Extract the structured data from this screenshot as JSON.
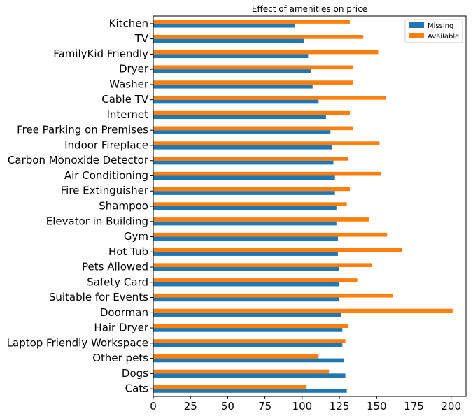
{
  "chart_data": {
    "type": "bar",
    "orientation": "horizontal",
    "title": "Effect of amenities on price",
    "xlabel": "",
    "ylabel": "",
    "xlim": [
      0,
      210
    ],
    "xticks": [
      0,
      25,
      50,
      75,
      100,
      125,
      150,
      175,
      200
    ],
    "grid": false,
    "legend_position": "top-right",
    "categories": [
      "Kitchen",
      "TV",
      "FamilyKid Friendly",
      "Dryer",
      "Washer",
      "Cable TV",
      "Internet",
      "Free Parking on Premises",
      "Indoor Fireplace",
      "Carbon Monoxide Detector",
      "Air Conditioning",
      "Fire Extinguisher",
      "Shampoo",
      "Elevator in Building",
      "Gym",
      "Hot Tub",
      "Pets Allowed",
      "Safety Card",
      "Suitable for Events",
      "Doorman",
      "Hair Dryer",
      "Laptop Friendly Workspace",
      "Other pets",
      "Dogs",
      "Cats"
    ],
    "series": [
      {
        "name": "Missing",
        "color": "#1f77b4",
        "values": [
          95,
          101,
          104,
          106,
          107,
          111,
          116,
          119,
          120,
          121,
          122,
          122,
          123,
          123,
          124,
          124,
          125,
          125,
          125,
          126,
          127,
          127,
          128,
          129,
          130
        ]
      },
      {
        "name": "Available",
        "color": "#ff7f0e",
        "values": [
          132,
          141,
          151,
          134,
          134,
          156,
          132,
          134,
          152,
          131,
          153,
          132,
          130,
          145,
          157,
          167,
          147,
          137,
          161,
          201,
          131,
          129,
          111,
          118,
          103
        ]
      }
    ]
  }
}
